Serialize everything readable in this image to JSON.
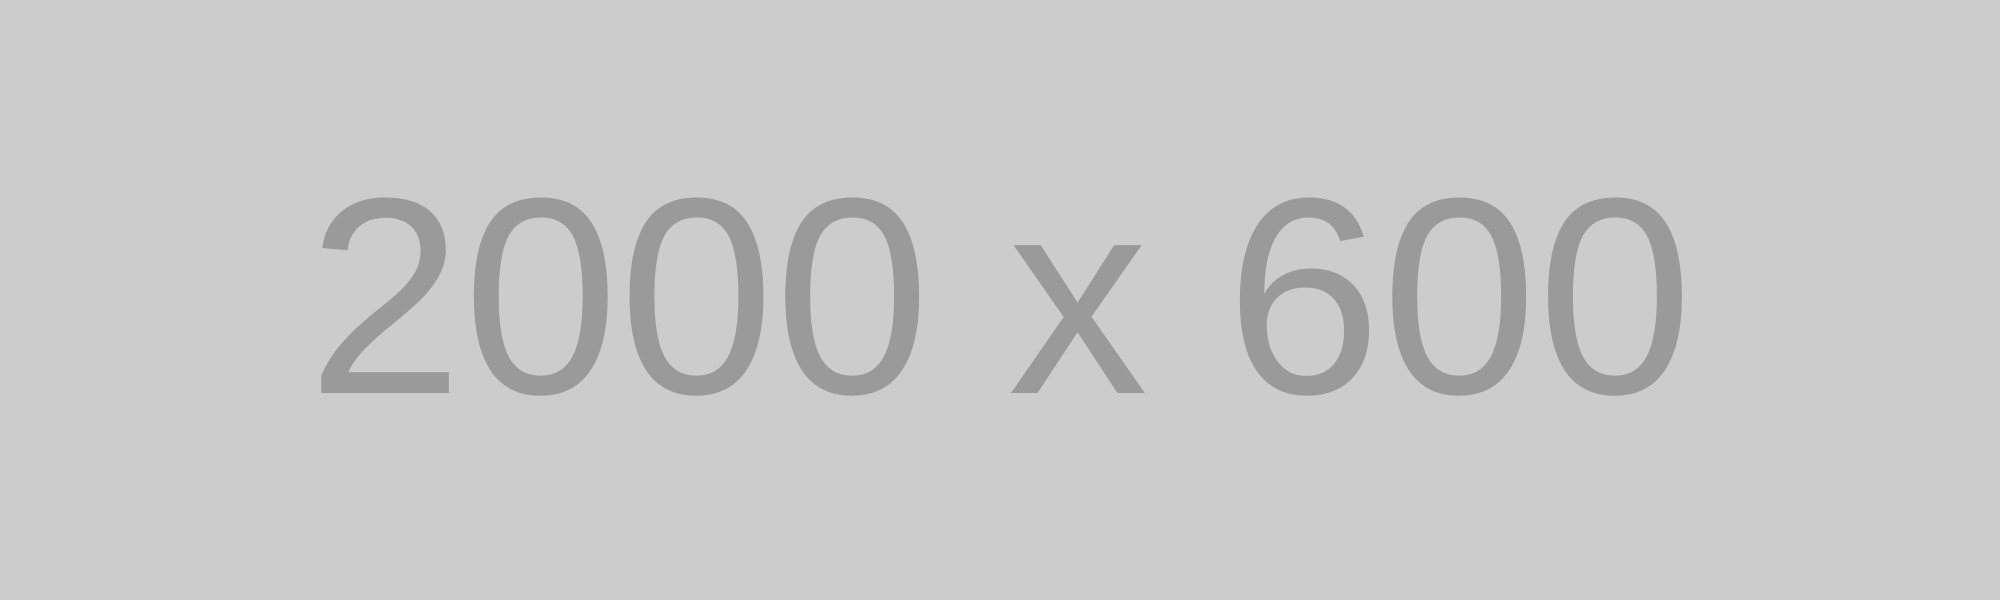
{
  "placeholder": {
    "label": "2000 x 600",
    "background_color": "#cccccc",
    "text_color": "#9a9a9a"
  }
}
